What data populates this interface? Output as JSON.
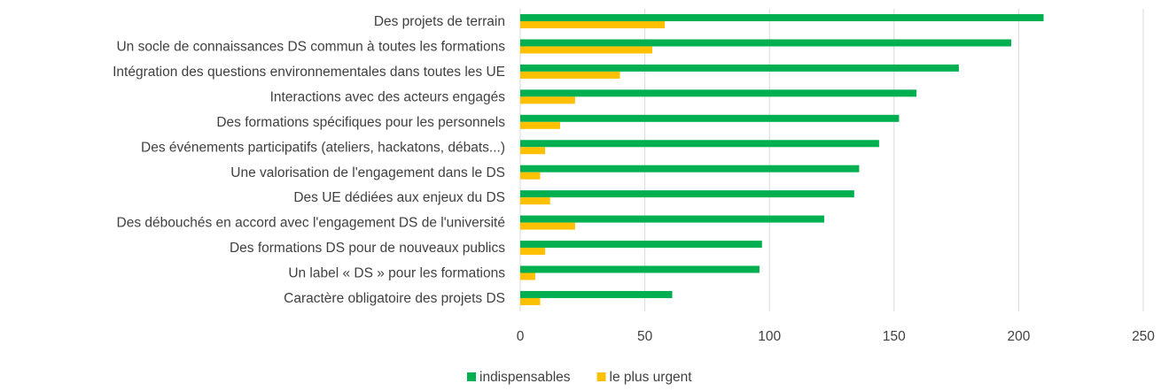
{
  "chart_data": {
    "type": "barh",
    "categories": [
      "Des projets de terrain",
      "Un socle de connaissances DS commun à toutes les formations",
      "Intégration des questions environnementales dans toutes les UE",
      "Interactions avec des acteurs engagés",
      "Des formations spécifiques pour les personnels",
      "Des événements participatifs (ateliers, hackatons, débats...)",
      "Une valorisation de l'engagement dans le DS",
      "Des UE dédiées aux enjeux du DS",
      "Des débouchés en accord avec l'engagement DS de l'université",
      "Des formations DS pour de nouveaux publics",
      "Un label « DS » pour les formations",
      "Caractère obligatoire des projets DS"
    ],
    "series": [
      {
        "name": "indispensables",
        "color": "#00b050",
        "values": [
          210,
          197,
          176,
          159,
          152,
          144,
          136,
          134,
          122,
          97,
          96,
          61
        ]
      },
      {
        "name": "le plus urgent",
        "color": "#ffc000",
        "values": [
          58,
          53,
          40,
          22,
          16,
          10,
          8,
          12,
          22,
          10,
          6,
          8
        ]
      }
    ],
    "xlim": [
      0,
      250
    ],
    "xticks": [
      0,
      50,
      100,
      150,
      200,
      250
    ],
    "grid": true,
    "legend": "bottom"
  }
}
